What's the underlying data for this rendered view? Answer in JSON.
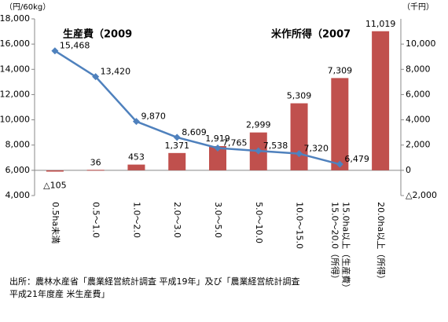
{
  "chart_data": {
    "type": "bar",
    "y_label": "（円/60kg）",
    "y2_label": "（千円）",
    "categories": [
      "0.5ha未満",
      "0.5～1.0",
      "1.0～2.0",
      "2.0～3.0",
      "3.0～5.0",
      "5.0～10.0",
      "10.0～15.0",
      "15.0～20.0（所得）\n15.0ha以上（生産費）",
      "20.0ha以上（所得）"
    ],
    "series": [
      {
        "name": "米作所得（2007",
        "type": "bar",
        "axis": "y2",
        "color": "#c0504d",
        "values": [
          -105,
          36,
          453,
          1371,
          1919,
          2999,
          5309,
          7309,
          11019
        ],
        "value_labels": [
          "△105",
          "36",
          "453",
          "1,371",
          "1,919",
          "2,999",
          "5,309",
          "7,309",
          "11,019"
        ]
      },
      {
        "name": "生産費（2009",
        "type": "line",
        "color": "#4f81bd",
        "values": [
          15468,
          13420,
          9870,
          8609,
          7765,
          7538,
          7320,
          6479,
          null
        ],
        "value_labels": [
          "15,468",
          "13,420",
          "9,870",
          "8,609",
          "7,765",
          "7,538",
          "7,320",
          "6,479",
          null
        ]
      }
    ],
    "ylim": [
      4000,
      18000
    ],
    "yticks": [
      {
        "value": 4000,
        "label": "4,000"
      },
      {
        "value": 6000,
        "label": "6,000"
      },
      {
        "value": 8000,
        "label": "8,000"
      },
      {
        "value": 10000,
        "label": "10,000"
      },
      {
        "value": 12000,
        "label": "12,000"
      },
      {
        "value": 14000,
        "label": "14,000"
      },
      {
        "value": 16000,
        "label": "16,000"
      },
      {
        "value": 18000,
        "label": "18,000"
      }
    ],
    "y2lim": [
      -2000,
      12000
    ],
    "y2ticks": [
      {
        "value": -2000,
        "label": "△2,000"
      },
      0,
      {
        "value": 2000,
        "label": "2,000"
      },
      {
        "value": 4000,
        "label": "4,000"
      },
      {
        "value": 6000,
        "label": "6,000"
      },
      {
        "value": 8000,
        "label": "8,000"
      },
      {
        "value": 10000,
        "label": "10,000"
      }
    ],
    "source": [
      "出所：農林水産省「農業経営統計調査 平成19年」及び「農業経営統計調査",
      "平成21年度産 米生産費」"
    ]
  }
}
